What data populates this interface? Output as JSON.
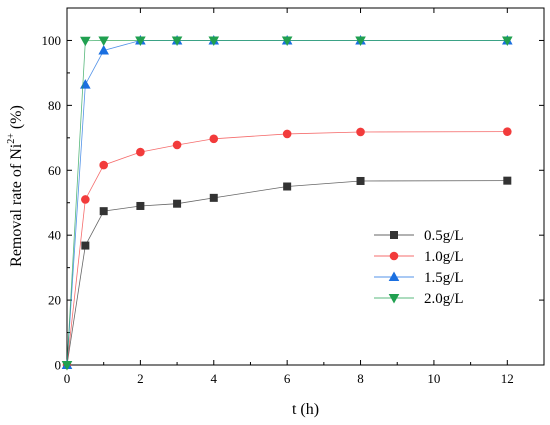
{
  "chart_data": {
    "type": "line",
    "xlabel": "t (h)",
    "ylabel": "Removal rate of Ni",
    "ylabel_sup": "2+",
    "ylabel_unit": " (%)",
    "xlim": [
      0,
      13
    ],
    "ylim": [
      0,
      110
    ],
    "xticks": [
      0,
      2,
      4,
      6,
      8,
      10,
      12
    ],
    "yticks": [
      0,
      20,
      40,
      60,
      80,
      100
    ],
    "x": [
      0,
      0.5,
      1,
      2,
      3,
      4,
      6,
      8,
      12
    ],
    "legend_position": "center-right",
    "grid": false,
    "series": [
      {
        "name": "0.5g/L",
        "color": "#333333",
        "marker": "square",
        "values": [
          0,
          36.8,
          47.4,
          49.0,
          49.7,
          51.5,
          55.0,
          56.7,
          56.8
        ]
      },
      {
        "name": "1.0g/L",
        "color": "#f23b3b",
        "marker": "circle",
        "values": [
          0,
          51.0,
          61.6,
          65.6,
          67.8,
          69.7,
          71.2,
          71.8,
          71.9
        ]
      },
      {
        "name": "1.5g/L",
        "color": "#1a6fe0",
        "marker": "triangle-up",
        "values": [
          0,
          86.4,
          96.9,
          100,
          100,
          100,
          100,
          100,
          100
        ]
      },
      {
        "name": "2.0g/L",
        "color": "#20a050",
        "marker": "triangle-down",
        "values": [
          0,
          99.9,
          100,
          100,
          100,
          100,
          100,
          100,
          100
        ]
      }
    ]
  }
}
